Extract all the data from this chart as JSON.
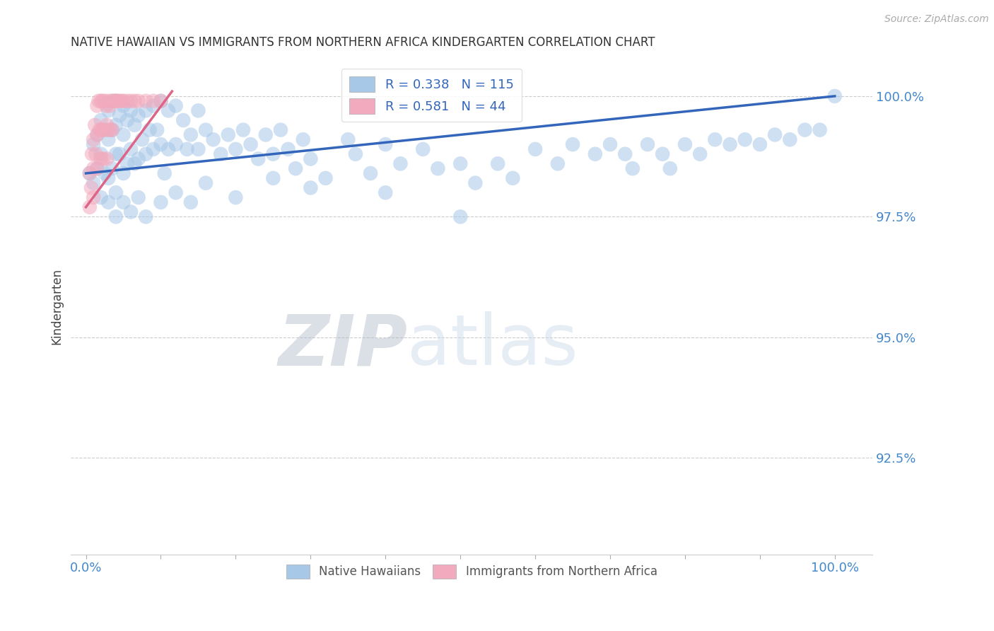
{
  "title": "NATIVE HAWAIIAN VS IMMIGRANTS FROM NORTHERN AFRICA KINDERGARTEN CORRELATION CHART",
  "source": "Source: ZipAtlas.com",
  "ylabel": "Kindergarten",
  "xlim": [
    -0.02,
    1.05
  ],
  "ylim": [
    0.905,
    1.008
  ],
  "yticks": [
    0.925,
    0.95,
    0.975,
    1.0
  ],
  "ytick_labels": [
    "92.5%",
    "95.0%",
    "97.5%",
    "100.0%"
  ],
  "xticks": [
    0.0,
    0.1,
    0.2,
    0.3,
    0.4,
    0.5,
    0.6,
    0.7,
    0.8,
    0.9,
    1.0
  ],
  "xtick_labels": [
    "0.0%",
    "",
    "",
    "",
    "",
    "",
    "",
    "",
    "",
    "",
    "100.0%"
  ],
  "blue_R": 0.338,
  "blue_N": 115,
  "pink_R": 0.581,
  "pink_N": 44,
  "blue_color": "#A8C8E8",
  "pink_color": "#F2AABE",
  "blue_line_color": "#3366BB",
  "pink_line_color": "#DD6688",
  "legend_label_blue": "Native Hawaiians",
  "legend_label_pink": "Immigrants from Northern Africa",
  "background_color": "#ffffff",
  "grid_color": "#cccccc",
  "title_color": "#333333",
  "axis_label_color": "#444444",
  "tick_label_color": "#4488cc",
  "watermark_zip": "ZIP",
  "watermark_atlas": "atlas",
  "blue_x": [
    0.005,
    0.01,
    0.01,
    0.015,
    0.015,
    0.02,
    0.02,
    0.02,
    0.025,
    0.025,
    0.03,
    0.03,
    0.03,
    0.035,
    0.035,
    0.035,
    0.04,
    0.04,
    0.04,
    0.04,
    0.045,
    0.045,
    0.05,
    0.05,
    0.05,
    0.055,
    0.055,
    0.06,
    0.06,
    0.065,
    0.065,
    0.07,
    0.07,
    0.075,
    0.08,
    0.08,
    0.085,
    0.09,
    0.09,
    0.095,
    0.1,
    0.1,
    0.105,
    0.11,
    0.11,
    0.12,
    0.12,
    0.13,
    0.135,
    0.14,
    0.15,
    0.15,
    0.16,
    0.17,
    0.18,
    0.19,
    0.2,
    0.21,
    0.22,
    0.23,
    0.24,
    0.25,
    0.26,
    0.27,
    0.28,
    0.29,
    0.3,
    0.32,
    0.35,
    0.36,
    0.38,
    0.4,
    0.42,
    0.45,
    0.47,
    0.5,
    0.52,
    0.55,
    0.57,
    0.6,
    0.63,
    0.65,
    0.68,
    0.7,
    0.72,
    0.73,
    0.75,
    0.77,
    0.78,
    0.8,
    0.82,
    0.84,
    0.86,
    0.88,
    0.9,
    0.92,
    0.94,
    0.96,
    0.98,
    1.0,
    0.03,
    0.04,
    0.05,
    0.06,
    0.07,
    0.08,
    0.1,
    0.12,
    0.14,
    0.16,
    0.2,
    0.25,
    0.3,
    0.4,
    0.5
  ],
  "blue_y": [
    0.984,
    0.99,
    0.982,
    0.992,
    0.985,
    0.995,
    0.988,
    0.979,
    0.993,
    0.984,
    0.997,
    0.991,
    0.983,
    0.999,
    0.993,
    0.985,
    0.999,
    0.994,
    0.988,
    0.98,
    0.996,
    0.988,
    0.998,
    0.992,
    0.984,
    0.995,
    0.986,
    0.997,
    0.989,
    0.994,
    0.986,
    0.996,
    0.987,
    0.991,
    0.997,
    0.988,
    0.993,
    0.998,
    0.989,
    0.993,
    0.999,
    0.99,
    0.984,
    0.997,
    0.989,
    0.998,
    0.99,
    0.995,
    0.989,
    0.992,
    0.997,
    0.989,
    0.993,
    0.991,
    0.988,
    0.992,
    0.989,
    0.993,
    0.99,
    0.987,
    0.992,
    0.988,
    0.993,
    0.989,
    0.985,
    0.991,
    0.987,
    0.983,
    0.991,
    0.988,
    0.984,
    0.99,
    0.986,
    0.989,
    0.985,
    0.986,
    0.982,
    0.986,
    0.983,
    0.989,
    0.986,
    0.99,
    0.988,
    0.99,
    0.988,
    0.985,
    0.99,
    0.988,
    0.985,
    0.99,
    0.988,
    0.991,
    0.99,
    0.991,
    0.99,
    0.992,
    0.991,
    0.993,
    0.993,
    1.0,
    0.978,
    0.975,
    0.978,
    0.976,
    0.979,
    0.975,
    0.978,
    0.98,
    0.978,
    0.982,
    0.979,
    0.983,
    0.981,
    0.98,
    0.975
  ],
  "pink_x": [
    0.005,
    0.005,
    0.007,
    0.008,
    0.01,
    0.01,
    0.01,
    0.012,
    0.013,
    0.015,
    0.015,
    0.015,
    0.017,
    0.018,
    0.02,
    0.02,
    0.02,
    0.022,
    0.022,
    0.023,
    0.025,
    0.025,
    0.027,
    0.028,
    0.028,
    0.03,
    0.03,
    0.032,
    0.033,
    0.035,
    0.035,
    0.038,
    0.04,
    0.042,
    0.045,
    0.048,
    0.05,
    0.055,
    0.06,
    0.065,
    0.07,
    0.08,
    0.09,
    0.1
  ],
  "pink_y": [
    0.984,
    0.977,
    0.981,
    0.988,
    0.991,
    0.985,
    0.979,
    0.994,
    0.988,
    0.998,
    0.992,
    0.985,
    0.999,
    0.993,
    0.999,
    0.993,
    0.987,
    0.999,
    0.993,
    0.987,
    0.999,
    0.993,
    0.998,
    0.994,
    0.987,
    0.999,
    0.993,
    0.998,
    0.993,
    0.999,
    0.993,
    0.999,
    0.999,
    0.999,
    0.999,
    0.999,
    0.999,
    0.999,
    0.999,
    0.999,
    0.999,
    0.999,
    0.999,
    0.999
  ],
  "blue_line_x": [
    0.0,
    1.0
  ],
  "blue_line_y": [
    0.984,
    1.0
  ],
  "pink_line_x": [
    0.0,
    0.115
  ],
  "pink_line_y": [
    0.977,
    1.001
  ]
}
